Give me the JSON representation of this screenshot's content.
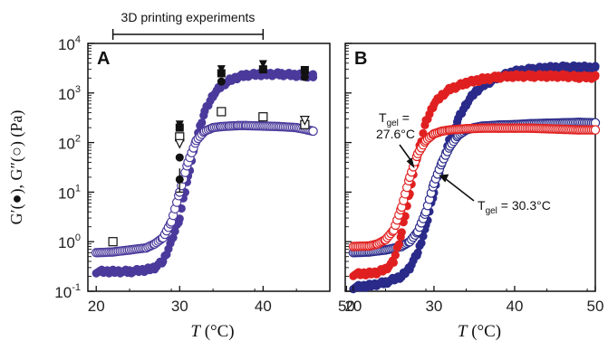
{
  "colors": {
    "purple": "#4b3a9b",
    "purple_open": "#5b4fb0",
    "blue": "#2a2a8a",
    "red": "#e02020",
    "black": "#111111"
  },
  "figure": {
    "y_axis_label": "G′(●), G″(○) (Pa)",
    "x_axis_label_italic": "T",
    "x_axis_label_unit": " (°C)",
    "experiments_label": "3D printing experiments",
    "experiments_range": [
      22,
      40
    ]
  },
  "chart_data": [
    {
      "panel": "A",
      "type": "scatter",
      "x_ticks": [
        20,
        30,
        40,
        50
      ],
      "y_ticks": [
        "10-1",
        "100",
        "101",
        "102",
        "103",
        "104"
      ],
      "y_log": true,
      "xlim": [
        19,
        48
      ],
      "ylim": [
        0.1,
        10000
      ],
      "series": [
        {
          "marker": "filled-circle",
          "color": "purple",
          "x": [
            20,
            22,
            24,
            26,
            27,
            28,
            29,
            30,
            31,
            32,
            33,
            34,
            35,
            36,
            37,
            38,
            40,
            42,
            44,
            46
          ],
          "y": [
            0.25,
            0.25,
            0.25,
            0.27,
            0.3,
            0.4,
            1.0,
            3.0,
            20,
            120,
            420,
            900,
            1400,
            1800,
            2100,
            2300,
            2400,
            2400,
            2300,
            2200
          ]
        },
        {
          "marker": "open-circle",
          "color": "purple",
          "x": [
            20,
            22,
            24,
            26,
            27,
            28,
            29,
            30,
            31,
            32,
            33,
            34,
            35,
            36,
            37,
            38,
            40,
            42,
            44,
            46
          ],
          "y": [
            0.6,
            0.62,
            0.68,
            0.75,
            0.9,
            1.2,
            2.5,
            10,
            40,
            110,
            170,
            200,
            210,
            215,
            220,
            220,
            215,
            210,
            200,
            170
          ]
        },
        {
          "marker": "filled-down-triangle",
          "color": "black",
          "x": [
            30,
            35,
            40,
            45
          ],
          "y": [
            230,
            3000,
            3800,
            2800
          ]
        },
        {
          "marker": "filled-square",
          "color": "black",
          "x": [
            30,
            35,
            40,
            45
          ],
          "y": [
            200,
            2500,
            3000,
            2900
          ]
        },
        {
          "marker": "filled-circle",
          "color": "black",
          "x": [
            30,
            35,
            45
          ],
          "y": [
            50,
            1700,
            2100
          ]
        },
        {
          "marker": "open-square",
          "color": "black",
          "x": [
            22,
            30,
            35,
            40,
            45
          ],
          "y": [
            1.0,
            130,
            420,
            330,
            230
          ]
        },
        {
          "marker": "open-down-triangle",
          "color": "black",
          "x": [
            30,
            45
          ],
          "y": [
            95,
            280
          ]
        }
      ],
      "error_bar": {
        "x": 30,
        "y": 18,
        "ylow": 10,
        "yhigh": 30
      }
    },
    {
      "panel": "B",
      "type": "scatter",
      "x_ticks": [
        20,
        30,
        40,
        50
      ],
      "y_log": true,
      "xlim": [
        19,
        50
      ],
      "ylim": [
        0.1,
        10000
      ],
      "series": [
        {
          "marker": "filled-circle",
          "color": "blue",
          "x": [
            20,
            22,
            24,
            26,
            27,
            28,
            29,
            30,
            31,
            32,
            33,
            34,
            35,
            36,
            38,
            40,
            42,
            44,
            46,
            48,
            50
          ],
          "y": [
            0.12,
            0.13,
            0.15,
            0.2,
            0.3,
            0.6,
            2.0,
            10,
            40,
            120,
            300,
            600,
            1000,
            1400,
            2100,
            2700,
            3000,
            3200,
            3300,
            3300,
            3200
          ]
        },
        {
          "marker": "open-circle",
          "color": "blue",
          "x": [
            20,
            22,
            24,
            26,
            27,
            28,
            29,
            30,
            31,
            32,
            33,
            34,
            35,
            36,
            38,
            40,
            42,
            44,
            46,
            48,
            50
          ],
          "y": [
            0.6,
            0.62,
            0.68,
            0.8,
            1.0,
            1.6,
            4.0,
            15,
            40,
            85,
            140,
            180,
            200,
            215,
            225,
            230,
            240,
            245,
            250,
            255,
            250
          ]
        },
        {
          "marker": "filled-circle",
          "color": "red",
          "x": [
            20,
            22,
            23,
            24,
            25,
            26,
            27,
            28,
            29,
            30,
            31,
            32,
            34,
            36,
            38,
            40,
            42,
            44,
            46,
            48,
            50
          ],
          "y": [
            0.22,
            0.23,
            0.24,
            0.28,
            0.4,
            1.5,
            10,
            60,
            260,
            600,
            900,
            1200,
            1600,
            1900,
            2100,
            2200,
            2200,
            2200,
            2200,
            2100,
            2100
          ]
        },
        {
          "marker": "open-circle",
          "color": "red",
          "x": [
            20,
            22,
            23,
            24,
            25,
            26,
            27,
            28,
            29,
            30,
            31,
            32,
            34,
            36,
            38,
            40,
            42,
            44,
            46,
            48,
            50
          ],
          "y": [
            0.8,
            0.82,
            0.9,
            1.1,
            1.7,
            5,
            20,
            60,
            110,
            150,
            170,
            180,
            190,
            195,
            195,
            195,
            195,
            190,
            185,
            180,
            180
          ]
        }
      ],
      "annotations": [
        {
          "text_main": "T",
          "text_sub": "gel",
          "text_line1_suffix": " =",
          "text_line2": "27.6°C"
        },
        {
          "text_main": "T",
          "text_sub": "gel",
          "text_suffix": " = 30.3°C"
        }
      ]
    }
  ]
}
